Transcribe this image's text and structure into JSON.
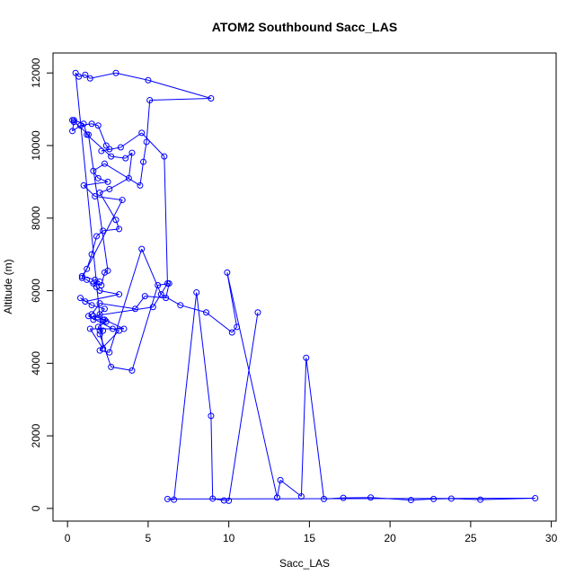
{
  "chart_data": {
    "type": "line",
    "title": "ATOM2 Southbound Sacc_LAS",
    "xlabel": "Sacc_LAS",
    "ylabel": "Altitude (m)",
    "xlim": [
      -0.9,
      30.3
    ],
    "ylim": [
      -350,
      12550
    ],
    "xticks": [
      0,
      5,
      10,
      15,
      20,
      25,
      30
    ],
    "yticks": [
      0,
      2000,
      4000,
      6000,
      8000,
      10000,
      12000
    ],
    "grid": false,
    "legend": "none",
    "color": "#0000ff",
    "marker": "open-circle",
    "x": [
      0.4,
      1.0,
      1.2,
      2.7,
      3.6,
      4.0,
      3.8,
      2.6,
      2.0,
      3.0,
      3.2,
      2.2,
      1.8,
      1.5,
      1.2,
      0.9,
      1.7,
      2.0,
      1.6,
      2.1,
      2.3,
      2.5,
      1.3,
      0.3,
      0.4,
      0.3,
      0.8,
      1.5,
      1.9,
      2.4,
      2.6,
      2.1,
      3.3,
      4.6,
      6.0,
      6.2,
      5.3,
      1.6,
      2.3,
      3.5,
      1.4,
      2.2,
      0.5,
      0.7,
      1.1,
      1.4,
      3.0,
      5.0,
      8.9,
      5.1,
      4.9,
      4.7,
      4.5,
      2.3,
      1.6,
      1.9,
      2.5,
      1.0,
      1.7,
      3.4,
      0.9,
      1.2,
      1.8,
      2.0,
      3.2,
      1.1,
      0.8,
      1.5,
      2.3,
      2.0,
      1.6,
      2.2,
      2.4,
      1.9,
      2.0,
      2.2,
      2.0,
      2.7,
      4.0,
      5.6,
      6.3,
      6.1,
      4.8,
      4.2,
      2.0,
      1.5,
      1.3,
      2.8,
      3.2,
      2.0,
      2.6,
      4.6,
      5.8,
      7.0,
      8.6,
      10.2,
      10.5,
      9.9,
      13.0,
      13.2,
      14.5,
      14.8,
      15.9,
      17.1,
      18.8,
      21.3,
      22.7,
      23.8,
      25.6,
      29.0,
      6.2,
      6.6,
      8.0,
      8.9,
      9.0,
      9.7,
      10.0,
      11.8
    ],
    "y": [
      10700,
      10600,
      10300,
      9700,
      9650,
      9800,
      9100,
      8800,
      8700,
      7950,
      7700,
      7650,
      7500,
      7000,
      6600,
      6400,
      6300,
      6250,
      6200,
      6150,
      6500,
      6550,
      10300,
      10700,
      10650,
      10400,
      10550,
      10600,
      10550,
      10000,
      9900,
      9850,
      9950,
      10350,
      9700,
      6200,
      5550,
      5300,
      5200,
      4950,
      4950,
      4400,
      12000,
      11900,
      11950,
      11850,
      12000,
      11800,
      11300,
      11250,
      10100,
      9550,
      8900,
      9500,
      9300,
      9100,
      9000,
      8900,
      8600,
      8500,
      6350,
      6300,
      6100,
      6000,
      5900,
      5700,
      5800,
      5600,
      5500,
      5350,
      5200,
      5200,
      5150,
      5000,
      4900,
      4900,
      4800,
      3900,
      3800,
      6150,
      6200,
      5800,
      5850,
      5500,
      5650,
      5350,
      5300,
      4950,
      4900,
      4350,
      4300,
      7150,
      5900,
      5600,
      5400,
      4850,
      5000,
      6500,
      300,
      780,
      330,
      4150,
      260,
      290,
      300,
      230,
      260,
      270,
      240,
      280,
      260,
      240,
      5950,
      2550,
      270,
      220,
      210,
      5400
    ]
  }
}
